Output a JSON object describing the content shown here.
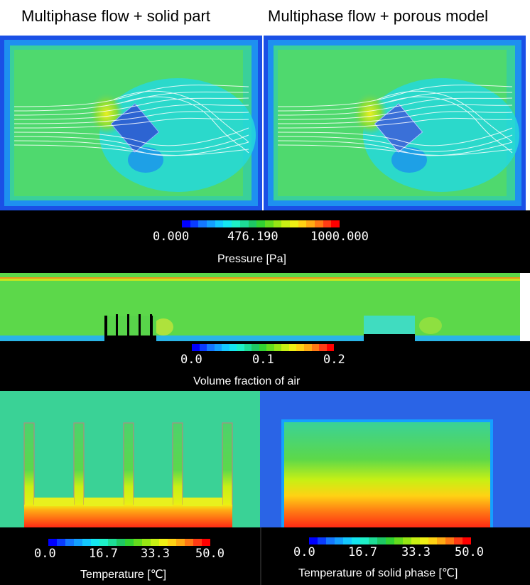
{
  "titles": {
    "left": "Multiphase flow + solid part",
    "right": "Multiphase flow + porous model"
  },
  "pressure": {
    "label": "Pressure [Pa]",
    "ticks": [
      "0.000",
      "476.190",
      "1000.000"
    ]
  },
  "volume_fraction": {
    "label": "Volume fraction of air",
    "ticks": [
      "0.0",
      "0.1",
      "0.2"
    ]
  },
  "temperature_left": {
    "label": "Temperature [℃]",
    "ticks": [
      "0.0",
      "16.7",
      "33.3",
      "50.0"
    ]
  },
  "temperature_right": {
    "label": "Temperature of solid phase [℃]",
    "ticks": [
      "0.0",
      "16.7",
      "33.3",
      "50.0"
    ]
  },
  "colormap": [
    "#0000ff",
    "#0a3cff",
    "#1478ff",
    "#14a0ff",
    "#14c8ff",
    "#14e6f0",
    "#1ef0c8",
    "#1edc96",
    "#1ec864",
    "#32d232",
    "#64dc1e",
    "#96e614",
    "#c8f014",
    "#f0f014",
    "#ffd214",
    "#ffaa14",
    "#ff7814",
    "#ff3c14",
    "#ff0000"
  ]
}
